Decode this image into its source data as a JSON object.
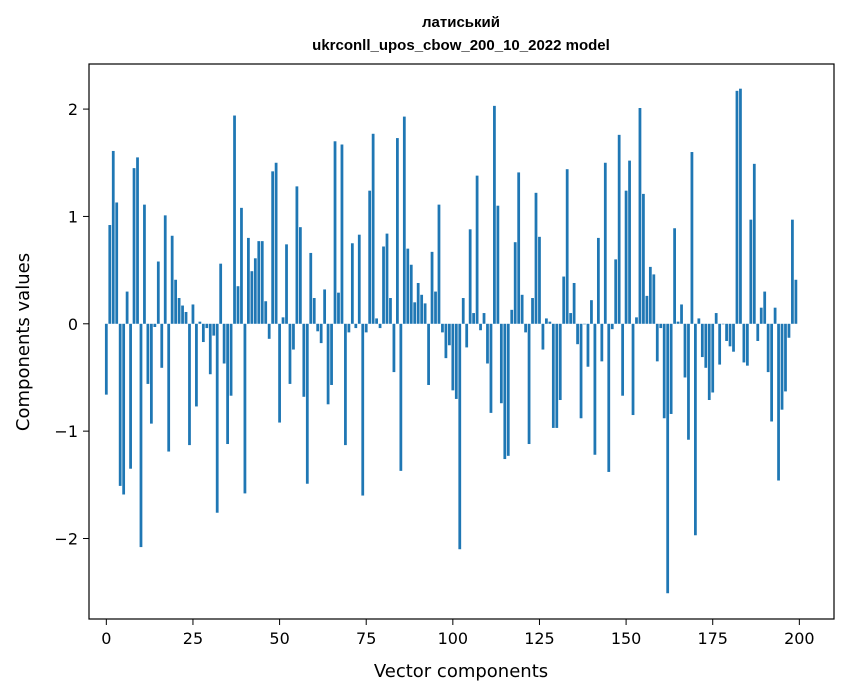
{
  "chart_data": {
    "type": "bar",
    "title_line1": "латиський",
    "title_line2": "ukrconll_upos_cbow_200_10_2022 model",
    "xlabel": "Vector components",
    "ylabel": "Components values",
    "xlim": [
      -5,
      210
    ],
    "ylim": [
      -2.75,
      2.42
    ],
    "xticks": [
      0,
      25,
      50,
      75,
      100,
      125,
      150,
      175,
      200
    ],
    "yticks": [
      -2,
      -1,
      0,
      1,
      2
    ],
    "ytick_labels": [
      "−2",
      "−1",
      "0",
      "1",
      "2"
    ],
    "bar_color": "#1f77b4",
    "grid": false,
    "values": [
      -0.66,
      0.92,
      1.61,
      1.13,
      -1.51,
      -1.59,
      0.3,
      -1.35,
      1.45,
      1.55,
      -2.08,
      1.11,
      -0.56,
      -0.93,
      -0.03,
      0.58,
      -0.41,
      1.01,
      -1.19,
      0.82,
      0.41,
      0.24,
      0.17,
      0.11,
      -1.13,
      0.18,
      -0.77,
      0.02,
      -0.17,
      -0.04,
      -0.47,
      -0.11,
      -1.76,
      0.56,
      -0.37,
      -1.12,
      -0.67,
      1.94,
      0.35,
      1.08,
      -1.58,
      0.8,
      0.49,
      0.61,
      0.77,
      0.77,
      0.21,
      -0.14,
      1.42,
      1.5,
      -0.92,
      0.06,
      0.74,
      -0.56,
      -0.24,
      1.28,
      0.9,
      -0.68,
      -1.49,
      0.66,
      0.24,
      -0.07,
      -0.18,
      0.32,
      -0.75,
      -0.57,
      1.7,
      0.29,
      1.67,
      -1.13,
      -0.08,
      0.75,
      -0.04,
      0.83,
      -1.6,
      -0.08,
      1.24,
      1.77,
      0.05,
      -0.04,
      0.72,
      0.84,
      0.24,
      -0.45,
      1.73,
      -1.37,
      1.93,
      0.7,
      0.55,
      0.2,
      0.38,
      0.27,
      0.19,
      -0.57,
      0.67,
      0.3,
      1.11,
      -0.08,
      -0.32,
      -0.2,
      -0.62,
      -0.7,
      -2.1,
      0.24,
      -0.22,
      0.88,
      0.1,
      1.38,
      -0.06,
      0.1,
      -0.37,
      -0.83,
      2.03,
      1.1,
      -0.74,
      -1.26,
      -1.23,
      0.13,
      0.76,
      1.41,
      0.27,
      -0.08,
      -1.12,
      0.24,
      1.22,
      0.81,
      -0.24,
      0.05,
      0.02,
      -0.97,
      -0.97,
      -0.71,
      0.44,
      1.44,
      0.1,
      0.38,
      -0.19,
      -0.88,
      0.0,
      -0.4,
      0.22,
      -1.22,
      0.8,
      -0.35,
      1.5,
      -1.38,
      -0.05,
      0.6,
      1.76,
      -0.67,
      1.24,
      1.52,
      -0.85,
      0.06,
      2.01,
      1.21,
      0.26,
      0.53,
      0.46,
      -0.35,
      -0.04,
      -0.88,
      -2.51,
      -0.84,
      0.89,
      0.02,
      0.18,
      -0.5,
      -1.08,
      1.6,
      -1.97,
      0.05,
      -0.31,
      -0.41,
      -0.71,
      -0.64,
      0.1,
      -0.38,
      0.0,
      -0.16,
      -0.21,
      -0.26,
      2.17,
      2.19,
      -0.36,
      -0.39,
      0.97,
      1.49,
      -0.16,
      0.15,
      0.3,
      -0.45,
      -0.91,
      0.15,
      -1.46,
      -0.8,
      -0.63,
      -0.13,
      0.97,
      0.41
    ]
  }
}
